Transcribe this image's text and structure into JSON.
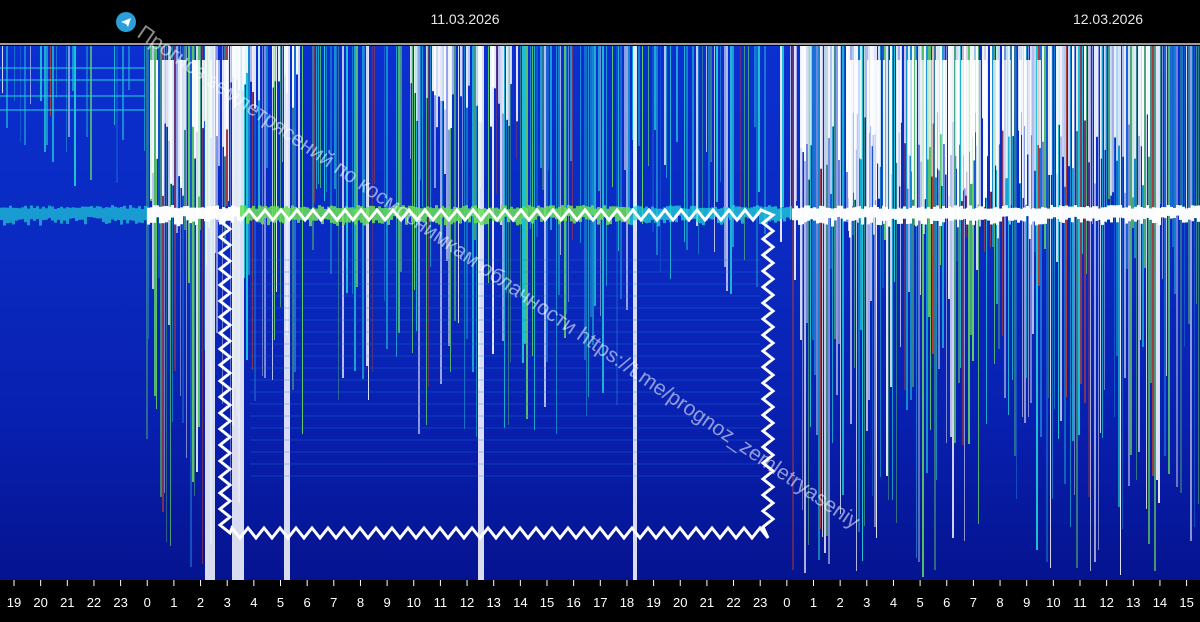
{
  "chart_data": {
    "type": "heatmap",
    "dates": [
      "11.03.2026",
      "12.03.2026"
    ],
    "x_tick_labels": [
      "19",
      "20",
      "21",
      "22",
      "23",
      "0",
      "1",
      "2",
      "3",
      "4",
      "5",
      "6",
      "7",
      "8",
      "9",
      "10",
      "11",
      "12",
      "13",
      "14",
      "15",
      "16",
      "17",
      "18",
      "19",
      "20",
      "21",
      "22",
      "23",
      "0",
      "1",
      "2",
      "3",
      "4",
      "5",
      "6",
      "7",
      "8",
      "9",
      "10",
      "11",
      "12",
      "13",
      "14",
      "15"
    ],
    "colors": {
      "background_low": "#0616a8",
      "mid": "#1f7ad8",
      "cyan": "#22d6d8",
      "green": "#6ae05a",
      "red": "#d04020",
      "white": "#ffffff",
      "header": "#000000",
      "marker": "#ffffff"
    },
    "highlight_box": {
      "from_hour": "3",
      "to_hour": "23",
      "style": "zigzag white outline"
    }
  },
  "watermark": {
    "text": "Прогноз землетрясений по космоснимкам облачности https://t.me/prognoz_zemletryaseniy",
    "icon": "telegram-icon"
  }
}
